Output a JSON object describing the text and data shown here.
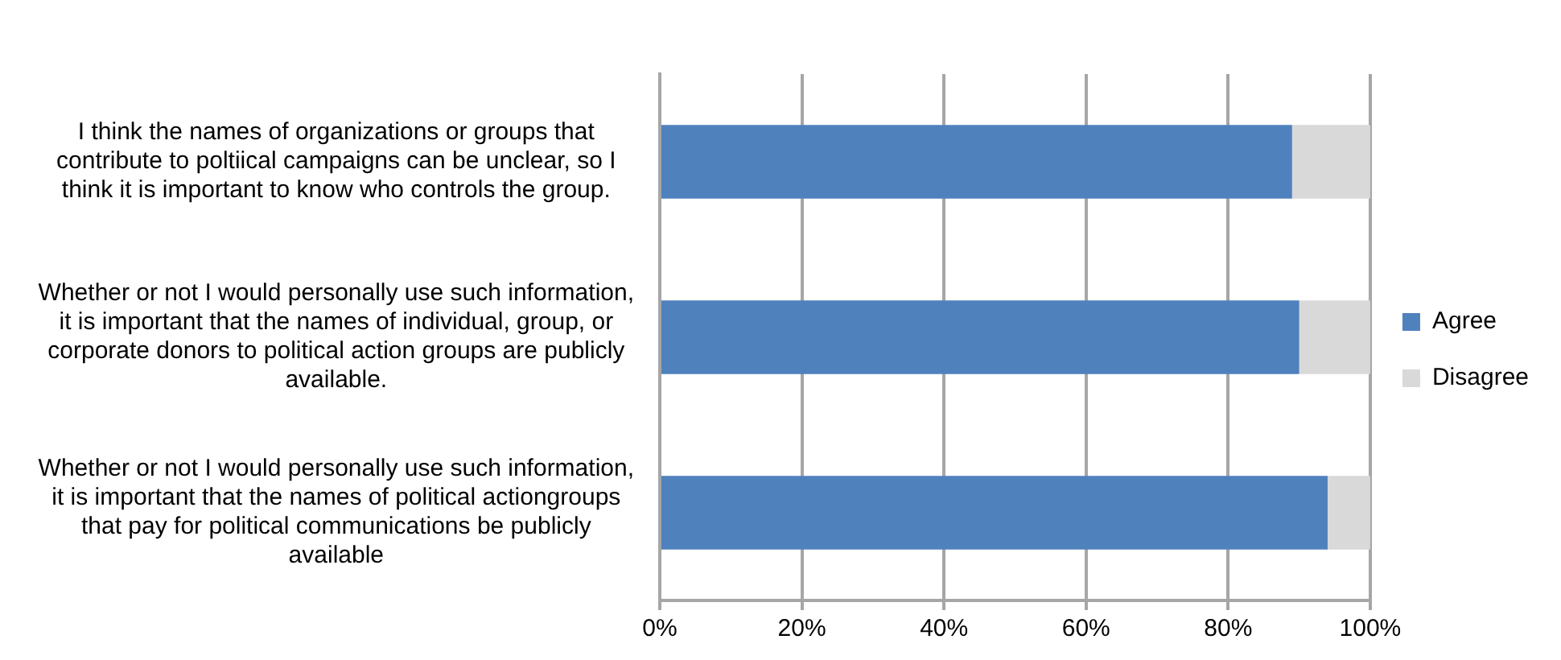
{
  "chart_data": {
    "type": "bar",
    "orientation": "horizontal",
    "stacked": true,
    "categories": [
      "I think the names of organizations or groups that contribute to poltiical campaigns can be unclear, so I think it is important to know who controls the group.",
      "Whether or not I would personally use such information, it is important that the names of individual, group, or corporate donors to political action groups are publicly available.",
      "Whether or not I would personally use such information, it is important that the names of political actiongroups that pay for political communications be publicly available"
    ],
    "series": [
      {
        "name": "Agree",
        "color": "#4f81bd",
        "values": [
          89,
          90,
          94
        ]
      },
      {
        "name": "Disagree",
        "color": "#d9d9d9",
        "values": [
          11,
          10,
          6
        ]
      }
    ],
    "xlim": [
      0,
      100
    ],
    "xticks": [
      {
        "value": 0,
        "label": "0%"
      },
      {
        "value": 20,
        "label": "20%"
      },
      {
        "value": 40,
        "label": "40%"
      },
      {
        "value": 60,
        "label": "60%"
      },
      {
        "value": 80,
        "label": "80%"
      },
      {
        "value": 100,
        "label": "100%"
      }
    ],
    "grid": "x",
    "legend": "right"
  }
}
